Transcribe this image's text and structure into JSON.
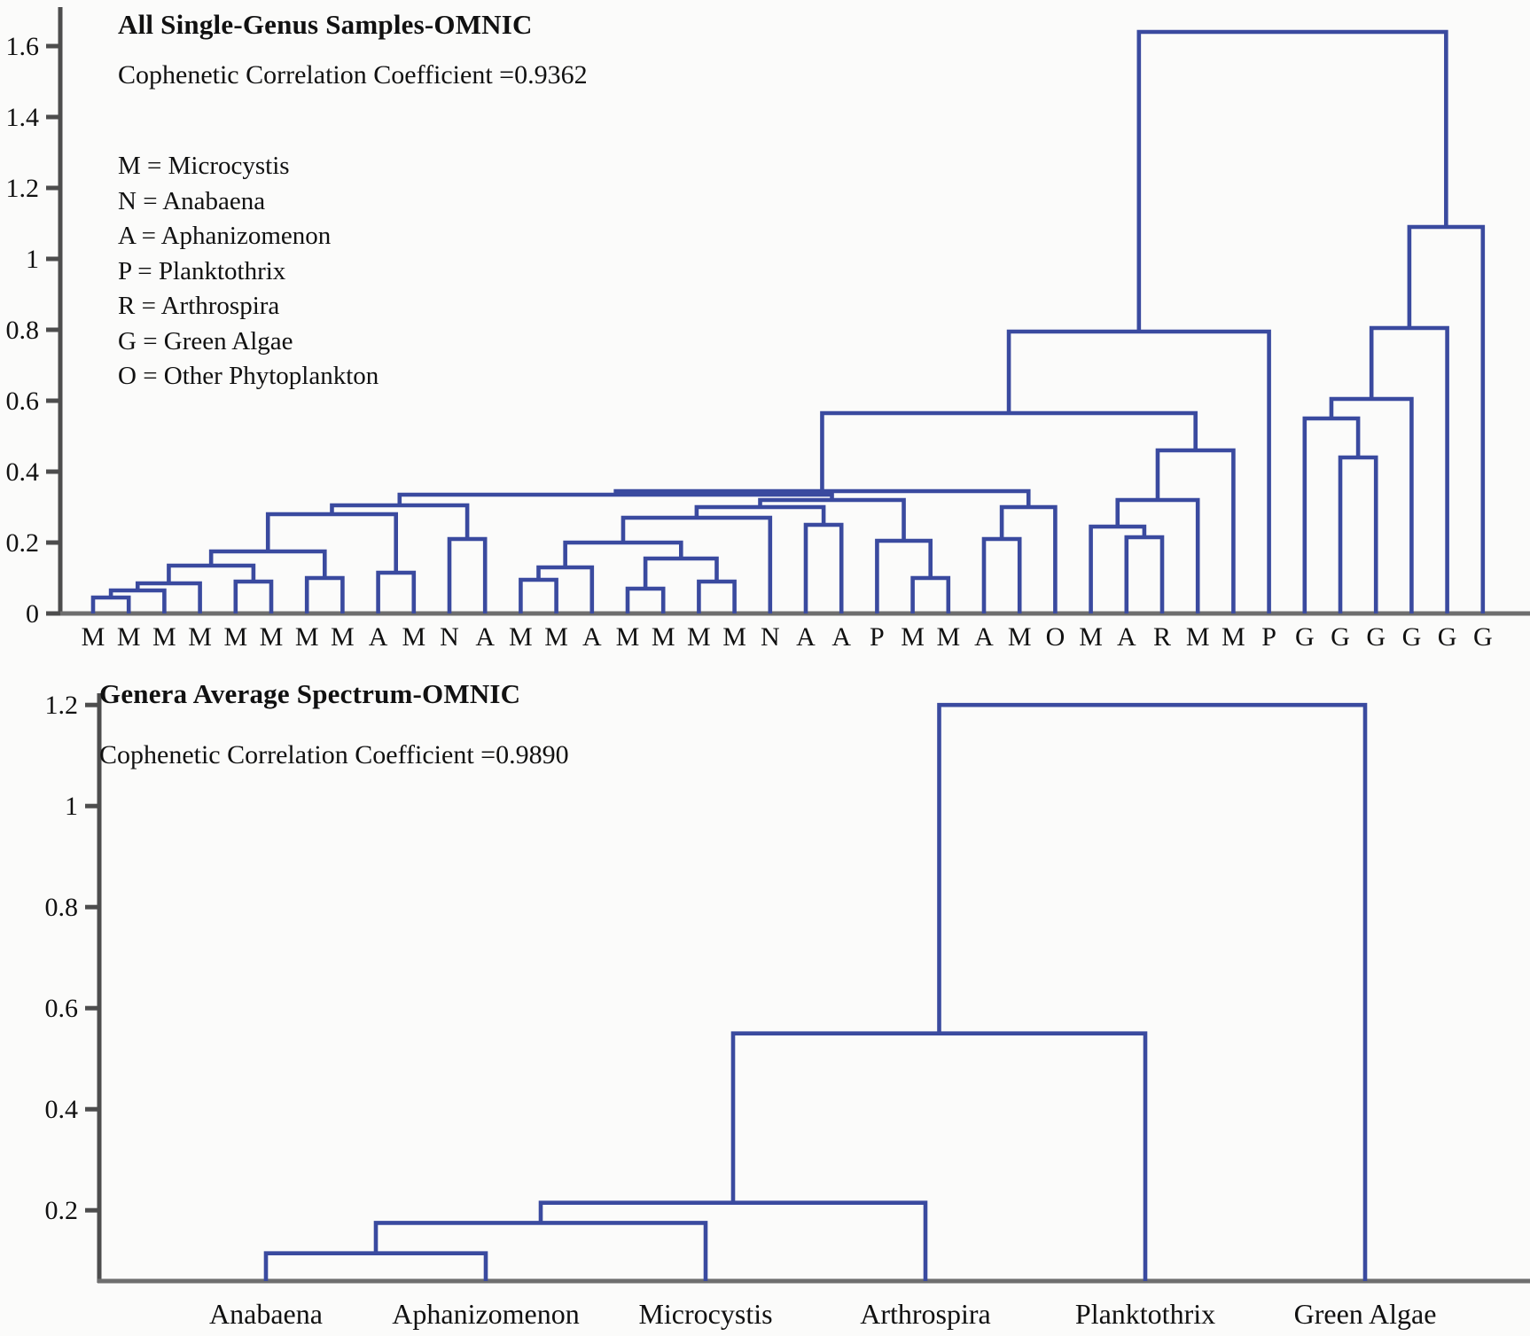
{
  "figure": {
    "colors": {
      "line": "#3a4a9f",
      "axis": "#4d4d4d",
      "text": "#111111",
      "background": "#fbfbfa"
    }
  },
  "chart_data": [
    {
      "type": "dendrogram",
      "title": "All Single-Genus Samples-OMNIC",
      "subtitle": "Cophenetic Correlation Coefficient =0.9362",
      "legend": [
        "M = Microcystis",
        "N = Anabaena",
        "A = Aphanizomenon",
        "P = Planktothrix",
        "R = Arthrospira",
        "G = Green Algae",
        "O = Other Phytoplankton"
      ],
      "ylim": [
        0,
        1.7
      ],
      "grid": false,
      "legend_position": "upper-left",
      "yticks": [
        {
          "v": 0,
          "label": "0"
        },
        {
          "v": 0.2,
          "label": "0.2"
        },
        {
          "v": 0.4,
          "label": "0.4"
        },
        {
          "v": 0.6,
          "label": "0.6"
        },
        {
          "v": 0.8,
          "label": "0.8"
        },
        {
          "v": 1.0,
          "label": "1"
        },
        {
          "v": 1.2,
          "label": "1.2"
        },
        {
          "v": 1.4,
          "label": "1.4"
        },
        {
          "v": 1.6,
          "label": "1.6"
        }
      ],
      "leaves": [
        "M",
        "M",
        "M",
        "M",
        "M",
        "M",
        "M",
        "M",
        "A",
        "M",
        "N",
        "A",
        "M",
        "M",
        "A",
        "M",
        "M",
        "M",
        "M",
        "N",
        "A",
        "A",
        "P",
        "M",
        "M",
        "A",
        "M",
        "O",
        "M",
        "A",
        "R",
        "M",
        "M",
        "P",
        "G",
        "G",
        "G",
        "G",
        "G",
        "G"
      ],
      "linkage": {
        "h": 1.64,
        "c": [
          {
            "h": 0.795,
            "c": [
              {
                "h": 0.565,
                "c": [
                  {
                    "h": 0.345,
                    "c": [
                      {
                        "h": 0.335,
                        "c": [
                          {
                            "h": 0.305,
                            "c": [
                              {
                                "h": 0.28,
                                "c": [
                                  {
                                    "h": 0.175,
                                    "c": [
                                      {
                                        "h": 0.135,
                                        "c": [
                                          {
                                            "h": 0.085,
                                            "c": [
                                              {
                                                "h": 0.065,
                                                "c": [
                                                  {
                                                    "h": 0.045,
                                                    "c": [
                                                      0,
                                                      1
                                                    ]
                                                  },
                                                  2
                                                ]
                                              },
                                              3
                                            ]
                                          },
                                          {
                                            "h": 0.09,
                                            "c": [
                                              4,
                                              5
                                            ]
                                          }
                                        ]
                                      },
                                      {
                                        "h": 0.1,
                                        "c": [
                                          6,
                                          7
                                        ]
                                      }
                                    ]
                                  },
                                  {
                                    "h": 0.115,
                                    "c": [
                                      8,
                                      9
                                    ]
                                  }
                                ]
                              },
                              {
                                "h": 0.21,
                                "c": [
                                  10,
                                  11
                                ]
                              }
                            ]
                          },
                          {
                            "h": 0.32,
                            "c": [
                              {
                                "h": 0.3,
                                "c": [
                                  {
                                    "h": 0.27,
                                    "c": [
                                      {
                                        "h": 0.2,
                                        "c": [
                                          {
                                            "h": 0.13,
                                            "c": [
                                              {
                                                "h": 0.095,
                                                "c": [
                                                  12,
                                                  13
                                                ]
                                              },
                                              14
                                            ]
                                          },
                                          {
                                            "h": 0.155,
                                            "c": [
                                              {
                                                "h": 0.07,
                                                "c": [
                                                  15,
                                                  16
                                                ]
                                              },
                                              {
                                                "h": 0.09,
                                                "c": [
                                                  17,
                                                  18
                                                ]
                                              }
                                            ]
                                          }
                                        ]
                                      },
                                      19
                                    ]
                                  },
                                  {
                                    "h": 0.25,
                                    "c": [
                                      20,
                                      21
                                    ]
                                  }
                                ]
                              },
                              {
                                "h": 0.205,
                                "c": [
                                  22,
                                  {
                                    "h": 0.1,
                                    "c": [
                                      23,
                                      24
                                    ]
                                  }
                                ]
                              }
                            ]
                          }
                        ]
                      },
                      {
                        "h": 0.3,
                        "c": [
                          {
                            "h": 0.21,
                            "c": [
                              25,
                              26
                            ]
                          },
                          27
                        ]
                      }
                    ]
                  },
                  {
                    "h": 0.46,
                    "c": [
                      {
                        "h": 0.32,
                        "c": [
                          {
                            "h": 0.245,
                            "c": [
                              28,
                              {
                                "h": 0.215,
                                "c": [
                                  29,
                                  30
                                ]
                              }
                            ]
                          },
                          31
                        ]
                      },
                      32
                    ]
                  }
                ]
              },
              33
            ]
          },
          {
            "h": 1.09,
            "c": [
              {
                "h": 0.805,
                "c": [
                  {
                    "h": 0.605,
                    "c": [
                      {
                        "h": 0.55,
                        "c": [
                          34,
                          {
                            "h": 0.44,
                            "c": [
                              35,
                              36
                            ]
                          }
                        ]
                      },
                      37
                    ]
                  },
                  38
                ]
              },
              39
            ]
          }
        ]
      }
    },
    {
      "type": "dendrogram",
      "title": "Genera Average Spectrum-OMNIC",
      "subtitle": "Cophenetic Correlation Coefficient =0.9890",
      "legend": [],
      "ylim": [
        0.06,
        1.25
      ],
      "grid": false,
      "yticks": [
        {
          "v": 0.2,
          "label": "0.2"
        },
        {
          "v": 0.4,
          "label": "0.4"
        },
        {
          "v": 0.6,
          "label": "0.6"
        },
        {
          "v": 0.8,
          "label": "0.8"
        },
        {
          "v": 1.0,
          "label": "1"
        },
        {
          "v": 1.2,
          "label": "1.2"
        }
      ],
      "leaves": [
        "Anabaena",
        "Aphanizomenon",
        "Microcystis",
        "Arthrospira",
        "Planktothrix",
        "Green Algae"
      ],
      "linkage": {
        "h": 1.2,
        "c": [
          {
            "h": 0.55,
            "c": [
              {
                "h": 0.215,
                "c": [
                  {
                    "h": 0.175,
                    "c": [
                      {
                        "h": 0.115,
                        "c": [
                          0,
                          1
                        ]
                      },
                      2
                    ]
                  },
                  3
                ]
              },
              4
            ]
          },
          5
        ]
      }
    }
  ]
}
